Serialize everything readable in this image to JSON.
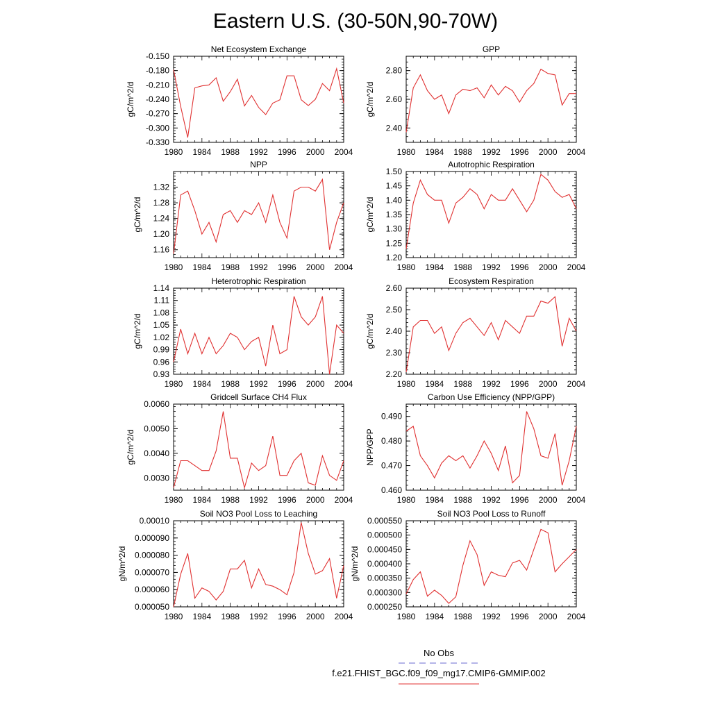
{
  "title": "Eastern U.S. (30-50N,90-70W)",
  "legend": {
    "obs_label": "No Obs",
    "obs_color": "#6a6ad0",
    "case_label": "f.e21.FHIST_BGC.f09_f09_mg17.CMIP6-GMMIP.002",
    "case_color": "#e03030"
  },
  "chart_data": [
    {
      "type": "line",
      "title": "Net Ecosystem Exchange",
      "ylabel": "gC/m^2/d",
      "xlim": [
        1980,
        2004
      ],
      "ylim": [
        -0.33,
        -0.15
      ],
      "yticks": [
        "-0.150",
        "-0.180",
        "-0.210",
        "-0.240",
        "-0.270",
        "-0.300",
        "-0.330"
      ],
      "ytick_values": [
        -0.15,
        -0.18,
        -0.21,
        -0.24,
        -0.27,
        -0.3,
        -0.33
      ],
      "xticks": [
        "1980",
        "1984",
        "1988",
        "1992",
        "1996",
        "2000",
        "2004"
      ],
      "x": [
        1980,
        1981,
        1982,
        1983,
        1984,
        1985,
        1986,
        1987,
        1988,
        1989,
        1990,
        1991,
        1992,
        1993,
        1994,
        1995,
        1996,
        1997,
        1998,
        1999,
        2000,
        2001,
        2002,
        2003,
        2004
      ],
      "values": [
        -0.178,
        -0.255,
        -0.32,
        -0.216,
        -0.212,
        -0.21,
        -0.195,
        -0.244,
        -0.224,
        -0.198,
        -0.254,
        -0.232,
        -0.257,
        -0.272,
        -0.248,
        -0.241,
        -0.191,
        -0.191,
        -0.241,
        -0.253,
        -0.24,
        -0.207,
        -0.222,
        -0.176,
        -0.248
      ]
    },
    {
      "type": "line",
      "title": "GPP",
      "ylabel": "gC/m^2/d",
      "xlim": [
        1980,
        2004
      ],
      "ylim": [
        2.3,
        2.9
      ],
      "yticks": [
        "2.40",
        "2.60",
        "2.80"
      ],
      "ytick_values": [
        2.4,
        2.6,
        2.8
      ],
      "xticks": [
        "1980",
        "1984",
        "1988",
        "1992",
        "1996",
        "2000",
        "2004"
      ],
      "x": [
        1980,
        1981,
        1982,
        1983,
        1984,
        1985,
        1986,
        1987,
        1988,
        1989,
        1990,
        1991,
        1992,
        1993,
        1994,
        1995,
        1996,
        1997,
        1998,
        1999,
        2000,
        2001,
        2002,
        2003,
        2004
      ],
      "values": [
        2.37,
        2.68,
        2.77,
        2.66,
        2.6,
        2.63,
        2.5,
        2.63,
        2.67,
        2.66,
        2.68,
        2.61,
        2.7,
        2.63,
        2.69,
        2.66,
        2.58,
        2.66,
        2.71,
        2.81,
        2.78,
        2.77,
        2.56,
        2.64,
        2.64
      ]
    },
    {
      "type": "line",
      "title": "NPP",
      "ylabel": "gC/m^2/d",
      "xlim": [
        1980,
        2004
      ],
      "ylim": [
        1.14,
        1.36
      ],
      "yticks": [
        "1.16",
        "1.20",
        "1.24",
        "1.28",
        "1.32"
      ],
      "ytick_values": [
        1.16,
        1.2,
        1.24,
        1.28,
        1.32
      ],
      "xticks": [
        "1980",
        "1984",
        "1988",
        "1992",
        "1996",
        "2000",
        "2004"
      ],
      "x": [
        1980,
        1981,
        1982,
        1983,
        1984,
        1985,
        1986,
        1987,
        1988,
        1989,
        1990,
        1991,
        1992,
        1993,
        1994,
        1995,
        1996,
        1997,
        1998,
        1999,
        2000,
        2001,
        2002,
        2003,
        2004
      ],
      "values": [
        1.15,
        1.3,
        1.31,
        1.26,
        1.2,
        1.23,
        1.18,
        1.25,
        1.26,
        1.23,
        1.26,
        1.25,
        1.28,
        1.23,
        1.3,
        1.23,
        1.19,
        1.31,
        1.32,
        1.32,
        1.31,
        1.34,
        1.16,
        1.23,
        1.28
      ]
    },
    {
      "type": "line",
      "title": "Autotrophic Respiration",
      "ylabel": "gC/m^2/d",
      "xlim": [
        1980,
        2004
      ],
      "ylim": [
        1.2,
        1.5
      ],
      "yticks": [
        "1.20",
        "1.25",
        "1.30",
        "1.35",
        "1.40",
        "1.45",
        "1.50"
      ],
      "ytick_values": [
        1.2,
        1.25,
        1.3,
        1.35,
        1.4,
        1.45,
        1.5
      ],
      "xticks": [
        "1980",
        "1984",
        "1988",
        "1992",
        "1996",
        "2000",
        "2004"
      ],
      "x": [
        1980,
        1981,
        1982,
        1983,
        1984,
        1985,
        1986,
        1987,
        1988,
        1989,
        1990,
        1991,
        1992,
        1993,
        1994,
        1995,
        1996,
        1997,
        1998,
        1999,
        2000,
        2001,
        2002,
        2003,
        2004
      ],
      "values": [
        1.23,
        1.39,
        1.47,
        1.42,
        1.4,
        1.4,
        1.32,
        1.39,
        1.41,
        1.44,
        1.42,
        1.37,
        1.42,
        1.4,
        1.4,
        1.44,
        1.4,
        1.36,
        1.4,
        1.49,
        1.47,
        1.43,
        1.41,
        1.42,
        1.37
      ]
    },
    {
      "type": "line",
      "title": "Heterotrophic Respiration",
      "ylabel": "gC/m^2/d",
      "xlim": [
        1980,
        2004
      ],
      "ylim": [
        0.93,
        1.14
      ],
      "yticks": [
        "0.93",
        "0.96",
        "0.99",
        "1.02",
        "1.05",
        "1.08",
        "1.11",
        "1.14"
      ],
      "ytick_values": [
        0.93,
        0.96,
        0.99,
        1.02,
        1.05,
        1.08,
        1.11,
        1.14
      ],
      "xticks": [
        "1980",
        "1984",
        "1988",
        "1992",
        "1996",
        "2000",
        "2004"
      ],
      "x": [
        1980,
        1981,
        1982,
        1983,
        1984,
        1985,
        1986,
        1987,
        1988,
        1989,
        1990,
        1991,
        1992,
        1993,
        1994,
        1995,
        1996,
        1997,
        1998,
        1999,
        2000,
        2001,
        2002,
        2003,
        2004
      ],
      "values": [
        0.96,
        1.04,
        0.98,
        1.03,
        0.98,
        1.02,
        0.98,
        1.0,
        1.03,
        1.02,
        0.99,
        1.01,
        1.02,
        0.95,
        1.05,
        0.98,
        0.99,
        1.12,
        1.07,
        1.05,
        1.07,
        1.12,
        0.93,
        1.05,
        1.03
      ]
    },
    {
      "type": "line",
      "title": "Ecosystem Respiration",
      "ylabel": "gC/m^2/d",
      "xlim": [
        1980,
        2004
      ],
      "ylim": [
        2.2,
        2.6
      ],
      "yticks": [
        "2.20",
        "2.30",
        "2.40",
        "2.50",
        "2.60"
      ],
      "ytick_values": [
        2.2,
        2.3,
        2.4,
        2.5,
        2.6
      ],
      "xticks": [
        "1980",
        "1984",
        "1988",
        "1992",
        "1996",
        "2000",
        "2004"
      ],
      "x": [
        1980,
        1981,
        1982,
        1983,
        1984,
        1985,
        1986,
        1987,
        1988,
        1989,
        1990,
        1991,
        1992,
        1993,
        1994,
        1995,
        1996,
        1997,
        1998,
        1999,
        2000,
        2001,
        2002,
        2003,
        2004
      ],
      "values": [
        2.21,
        2.42,
        2.45,
        2.45,
        2.39,
        2.42,
        2.31,
        2.39,
        2.44,
        2.46,
        2.42,
        2.38,
        2.44,
        2.36,
        2.45,
        2.42,
        2.39,
        2.47,
        2.47,
        2.54,
        2.53,
        2.56,
        2.33,
        2.46,
        2.4
      ]
    },
    {
      "type": "line",
      "title": "Gridcell Surface CH4 Flux",
      "ylabel": "gC/m^2/d",
      "xlim": [
        1980,
        2004
      ],
      "ylim": [
        0.0025,
        0.006
      ],
      "yticks": [
        "0.0030",
        "0.0040",
        "0.0050",
        "0.0060"
      ],
      "ytick_values": [
        0.003,
        0.004,
        0.005,
        0.006
      ],
      "xticks": [
        "1980",
        "1984",
        "1988",
        "1992",
        "1996",
        "2000",
        "2004"
      ],
      "x": [
        1980,
        1981,
        1982,
        1983,
        1984,
        1985,
        1986,
        1987,
        1988,
        1989,
        1990,
        1991,
        1992,
        1993,
        1994,
        1995,
        1996,
        1997,
        1998,
        1999,
        2000,
        2001,
        2002,
        2003,
        2004
      ],
      "values": [
        0.0026,
        0.0037,
        0.0037,
        0.0035,
        0.0033,
        0.0033,
        0.0041,
        0.0057,
        0.0038,
        0.0038,
        0.0026,
        0.0036,
        0.0033,
        0.0035,
        0.0047,
        0.0031,
        0.0031,
        0.0037,
        0.004,
        0.0028,
        0.0027,
        0.0039,
        0.0031,
        0.0029,
        0.0037
      ]
    },
    {
      "type": "line",
      "title": "Carbon Use Efficiency (NPP/GPP)",
      "ylabel": "NPP/GPP",
      "xlim": [
        1980,
        2004
      ],
      "ylim": [
        0.46,
        0.495
      ],
      "yticks": [
        "0.460",
        "0.470",
        "0.480",
        "0.490"
      ],
      "ytick_values": [
        0.46,
        0.47,
        0.48,
        0.49
      ],
      "xticks": [
        "1980",
        "1984",
        "1988",
        "1992",
        "1996",
        "2000",
        "2004"
      ],
      "x": [
        1980,
        1981,
        1982,
        1983,
        1984,
        1985,
        1986,
        1987,
        1988,
        1989,
        1990,
        1991,
        1992,
        1993,
        1994,
        1995,
        1996,
        1997,
        1998,
        1999,
        2000,
        2001,
        2002,
        2003,
        2004
      ],
      "values": [
        0.484,
        0.486,
        0.474,
        0.47,
        0.465,
        0.471,
        0.474,
        0.472,
        0.474,
        0.469,
        0.474,
        0.48,
        0.475,
        0.468,
        0.478,
        0.463,
        0.466,
        0.492,
        0.485,
        0.474,
        0.473,
        0.483,
        0.462,
        0.472,
        0.486
      ]
    },
    {
      "type": "line",
      "title": "Soil NO3 Pool Loss to Leaching",
      "ylabel": "gN/m^2/d",
      "xlim": [
        1980,
        2004
      ],
      "ylim": [
        5e-05,
        0.0001
      ],
      "yticks": [
        "0.000050",
        "0.000060",
        "0.000070",
        "0.000080",
        "0.000090",
        "0.00010"
      ],
      "ytick_values": [
        5e-05,
        6e-05,
        7e-05,
        8e-05,
        9e-05,
        0.0001
      ],
      "xticks": [
        "1980",
        "1984",
        "1988",
        "1992",
        "1996",
        "2000",
        "2004"
      ],
      "x": [
        1980,
        1981,
        1982,
        1983,
        1984,
        1985,
        1986,
        1987,
        1988,
        1989,
        1990,
        1991,
        1992,
        1993,
        1994,
        1995,
        1996,
        1997,
        1998,
        1999,
        2000,
        2001,
        2002,
        2003,
        2004
      ],
      "values": [
        5e-05,
        6.9e-05,
        8.1e-05,
        5.5e-05,
        6.1e-05,
        5.9e-05,
        5.4e-05,
        5.9e-05,
        7.2e-05,
        7.2e-05,
        7.7e-05,
        6.1e-05,
        7.2e-05,
        6.3e-05,
        6.2e-05,
        6e-05,
        5.7e-05,
        7e-05,
        9.9e-05,
        8.1e-05,
        6.9e-05,
        7.1e-05,
        7.8e-05,
        5.5e-05,
        7.4e-05
      ]
    },
    {
      "type": "line",
      "title": "Soil NO3 Pool Loss to Runoff",
      "ylabel": "gN/m^2/d",
      "xlim": [
        1980,
        2004
      ],
      "ylim": [
        0.00025,
        0.00055
      ],
      "yticks": [
        "0.000250",
        "0.000300",
        "0.000350",
        "0.000400",
        "0.000450",
        "0.000500",
        "0.000550"
      ],
      "ytick_values": [
        0.00025,
        0.0003,
        0.00035,
        0.0004,
        0.00045,
        0.0005,
        0.00055
      ],
      "xticks": [
        "1980",
        "1984",
        "1988",
        "1992",
        "1996",
        "2000",
        "2004"
      ],
      "x": [
        1980,
        1981,
        1982,
        1983,
        1984,
        1985,
        1986,
        1987,
        1988,
        1989,
        1990,
        1991,
        1992,
        1993,
        1994,
        1995,
        1996,
        1997,
        1998,
        1999,
        2000,
        2001,
        2002,
        2003,
        2004
      ],
      "values": [
        0.000295,
        0.000345,
        0.000372,
        0.000287,
        0.000308,
        0.00029,
        0.000262,
        0.000285,
        0.000395,
        0.00048,
        0.000432,
        0.000325,
        0.000372,
        0.00036,
        0.000355,
        0.000403,
        0.000412,
        0.000378,
        0.00045,
        0.00052,
        0.000508,
        0.000372,
        0.0004,
        0.000425,
        0.00045
      ]
    }
  ]
}
